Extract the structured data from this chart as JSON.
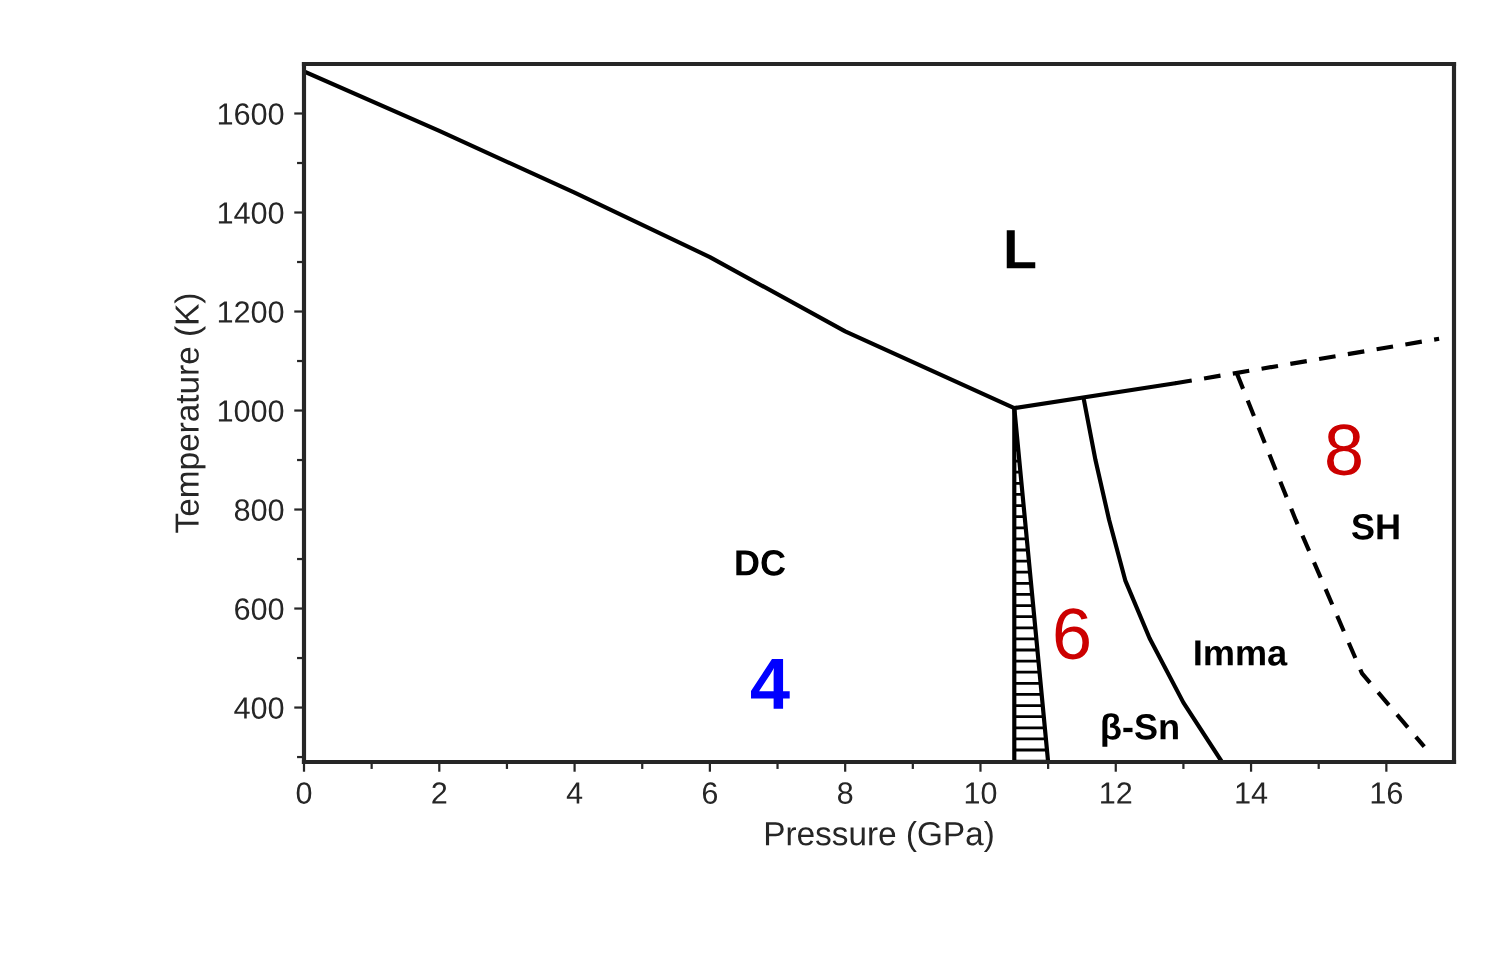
{
  "chart_data": {
    "type": "line",
    "xlabel": "Pressure (GPa)",
    "ylabel": "Temperature (K)",
    "xlim": [
      0,
      17
    ],
    "ylim": [
      290,
      1700
    ],
    "xticks": [
      0,
      {
        "value": 1,
        "label": null
      },
      2,
      {
        "value": 3,
        "label": null
      },
      4,
      {
        "value": 5,
        "label": null
      },
      6,
      {
        "value": 7,
        "label": null
      },
      8,
      {
        "value": 9,
        "label": null
      },
      10,
      {
        "value": 11,
        "label": null
      },
      12,
      {
        "value": 13,
        "label": null
      },
      14,
      {
        "value": 15,
        "label": null
      },
      16
    ],
    "yticks": [
      {
        "value": 300,
        "label": null
      },
      400,
      {
        "value": 500,
        "label": null
      },
      600,
      {
        "value": 700,
        "label": null
      },
      800,
      {
        "value": 900,
        "label": null
      },
      1000,
      {
        "value": 1100,
        "label": null
      },
      1200,
      {
        "value": 1300,
        "label": null
      },
      1400,
      {
        "value": 1500,
        "label": null
      },
      1600
    ],
    "grid": false,
    "legend": false,
    "marker": "none",
    "series": [
      {
        "color": "#000000",
        "line_style": "solid",
        "x": [
          0,
          2,
          4,
          6,
          8,
          10.5
        ],
        "values": [
          1685,
          1565,
          1440,
          1310,
          1160,
          1005
        ]
      },
      {
        "color": "#000000",
        "line_style": "solid",
        "x": [
          10.5,
          12.88
        ],
        "values": [
          1005,
          1055
        ]
      },
      {
        "color": "#000000",
        "line_style": "dashed",
        "x": [
          12.88,
          16.78
        ],
        "values": [
          1055,
          1145
        ]
      },
      {
        "color": "#000000",
        "line_style": "solid",
        "x": [
          10.5,
          10.5
        ],
        "values": [
          1005,
          290
        ]
      },
      {
        "color": "#000000",
        "line_style": "solid",
        "x": [
          10.5,
          11.0
        ],
        "values": [
          1005,
          290
        ]
      },
      {
        "color": "#000000",
        "line_style": "solid",
        "x": [
          11.53,
          11.7,
          11.9,
          12.14,
          12.5,
          13.0,
          13.57
        ],
        "values": [
          1021,
          900,
          780,
          657,
          540,
          410,
          290
        ]
      },
      {
        "color": "#000000",
        "line_style": "dashed",
        "x": [
          13.79,
          14.66,
          15.64,
          16.56
        ],
        "values": [
          1075,
          779,
          469,
          321
        ]
      }
    ],
    "annotations": [
      "L",
      "DC",
      "4",
      "6",
      "β-Sn",
      "Imma",
      "8",
      "SH"
    ]
  }
}
